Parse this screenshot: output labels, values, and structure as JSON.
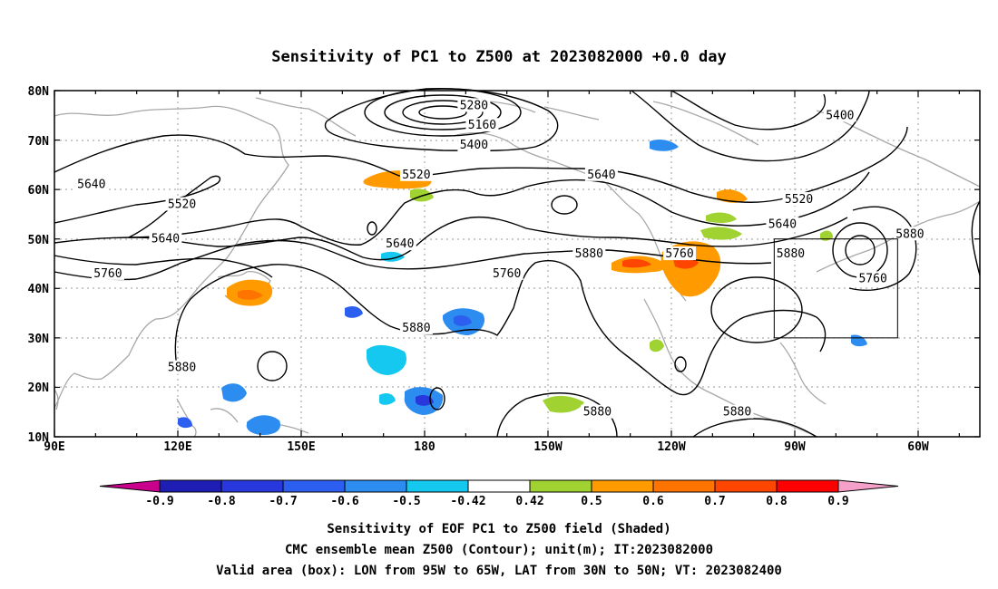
{
  "title": "Sensitivity of PC1 to Z500 at 2023082000 +0.0 day",
  "lat_ticks": [
    "10N",
    "20N",
    "30N",
    "40N",
    "50N",
    "60N",
    "70N",
    "80N"
  ],
  "lon_ticks": [
    "90E",
    "120E",
    "150E",
    "180",
    "150W",
    "120W",
    "90W",
    "60W"
  ],
  "colorbar": {
    "labels": [
      "-0.9",
      "-0.8",
      "-0.7",
      "-0.6",
      "-0.5",
      "-0.42",
      "0.42",
      "0.5",
      "0.6",
      "0.7",
      "0.8",
      "0.9"
    ],
    "colors": [
      "#c8008c",
      "#1e1eb4",
      "#2838dc",
      "#2c5ef0",
      "#2c8cf0",
      "#14c8f0",
      "#ffffff",
      "#a0d232",
      "#ff9b00",
      "#ff7300",
      "#ff4600",
      "#ff0000",
      "#f5a0c8"
    ]
  },
  "box": {
    "lon_min": -95,
    "lon_max": -65,
    "lat_min": 30,
    "lat_max": 50
  },
  "contour_labels": [
    {
      "text": "5280",
      "lon": -168,
      "lat": 77
    },
    {
      "text": "5160",
      "lon": -166,
      "lat": 73
    },
    {
      "text": "5400",
      "lon": -168,
      "lat": 69
    },
    {
      "text": "5400",
      "lon": -79,
      "lat": 75
    },
    {
      "text": "5520",
      "lon": 178,
      "lat": 63
    },
    {
      "text": "5640",
      "lon": -137,
      "lat": 63
    },
    {
      "text": "5640",
      "lon": 99,
      "lat": 61
    },
    {
      "text": "5520",
      "lon": 121,
      "lat": 57
    },
    {
      "text": "5520",
      "lon": -89,
      "lat": 58
    },
    {
      "text": "5640",
      "lon": -93,
      "lat": 53
    },
    {
      "text": "5640",
      "lon": 117,
      "lat": 50
    },
    {
      "text": "5640",
      "lon": 174,
      "lat": 49
    },
    {
      "text": "5880",
      "lon": -62,
      "lat": 51
    },
    {
      "text": "5760",
      "lon": 103,
      "lat": 43
    },
    {
      "text": "5760",
      "lon": -160,
      "lat": 43
    },
    {
      "text": "5880",
      "lon": -140,
      "lat": 47
    },
    {
      "text": "5760",
      "lon": -118,
      "lat": 47
    },
    {
      "text": "5880",
      "lon": -91,
      "lat": 47
    },
    {
      "text": "5760",
      "lon": -71,
      "lat": 42
    },
    {
      "text": "5880",
      "lon": 178,
      "lat": 32
    },
    {
      "text": "5880",
      "lon": 121,
      "lat": 24
    },
    {
      "text": "5880",
      "lon": -138,
      "lat": 15
    },
    {
      "text": "5880",
      "lon": -104,
      "lat": 15
    }
  ],
  "caption": {
    "line1": "Sensitivity of EOF PC1 to Z500 field (Shaded)",
    "line2": "CMC ensemble mean Z500 (Contour); unit(m); IT:2023082000",
    "line3": "Valid area (box): LON from 95W to 65W, LAT from 30N to 50N; VT: 2023082400"
  }
}
